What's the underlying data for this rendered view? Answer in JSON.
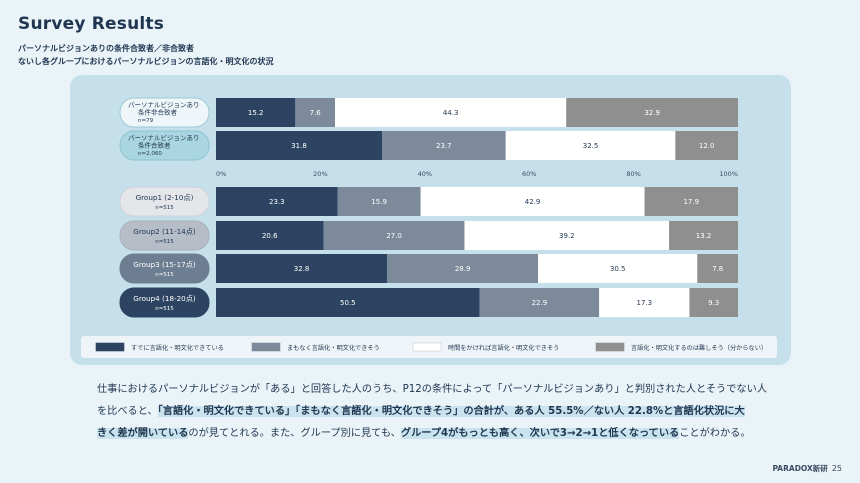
{
  "title": "Survey Results",
  "subtitle_line1": "パーソナルビジョンありの条件合致者／非合致者",
  "subtitle_line2": "ないし各グループにおけるパーソナルビジョンの言語化・明文化の状況",
  "chart_data": {
    "type": "bar",
    "orientation": "horizontal-stacked-100",
    "xlim": [
      0,
      100
    ],
    "x_ticks": [
      "0%",
      "20%",
      "40%",
      "60%",
      "80%",
      "100%"
    ],
    "categories": [
      {
        "label": "パーソナルビジョンあり\n条件非合致者",
        "n": "n=79"
      },
      {
        "label": "パーソナルビジョンあり\n条件合致者",
        "n": "n=2,060"
      },
      {
        "label": "Group1 (2-10点)",
        "n": "n=515"
      },
      {
        "label": "Group2 (11-14点)",
        "n": "n=515"
      },
      {
        "label": "Group3 (15-17点)",
        "n": "n=515"
      },
      {
        "label": "Group4 (18-20点)",
        "n": "n=515"
      }
    ],
    "series": [
      {
        "name": "すでに言語化・明文化できている",
        "color": "#2c4462",
        "values": [
          15.2,
          31.8,
          23.3,
          20.6,
          32.8,
          50.5
        ]
      },
      {
        "name": "まもなく言語化・明文化できそう",
        "color": "#7d8a9b",
        "values": [
          7.6,
          23.7,
          15.9,
          27.0,
          28.9,
          22.9
        ]
      },
      {
        "name": "時間をかければ言語化・明文化できそう",
        "color": "#ffffff",
        "values": [
          44.3,
          32.5,
          42.9,
          39.2,
          30.5,
          17.3
        ]
      },
      {
        "name": "言語化・明文化するのは難しそう（分からない）",
        "color": "#8f8f8f",
        "values": [
          32.9,
          12.0,
          17.9,
          13.2,
          7.8,
          9.3
        ]
      }
    ],
    "value_labels": [
      [
        "15.2",
        "7.6",
        "44.3",
        "32.9"
      ],
      [
        "31.8",
        "23.7",
        "32.5",
        "12.0"
      ],
      [
        "23.3",
        "15.9",
        "42.9",
        "17.9"
      ],
      [
        "20.6",
        "27.0",
        "39.2",
        "13.2"
      ],
      [
        "32.8",
        "28.9",
        "30.5",
        "7.8"
      ],
      [
        "50.5",
        "22.9",
        "17.3",
        "9.3"
      ]
    ],
    "legend_position": "bottom"
  },
  "paragraph": {
    "line1": "仕事におけるパーソナルビジョンが「ある」と回答した人のうち、P12の条件によって「パーソナルビジョンあり」と判別された人とそうでない人",
    "line2_a": "を比べると、",
    "line2_b": "「言語化・明文化できている」「まもなく言語化・明文化できそう」の合計が、ある人 55.5%／ない人 22.8%と言語化状況に大",
    "line3_a": "きく差が開いている",
    "line3_b": "のが見てとれる。また、グループ別に見ても、",
    "line3_c": "グループ4がもっとも高く、次いで3→2→1と低くなっている",
    "line3_d": "ことがわかる。"
  },
  "footer": {
    "brand": "PARADOX新研",
    "page": "25"
  }
}
